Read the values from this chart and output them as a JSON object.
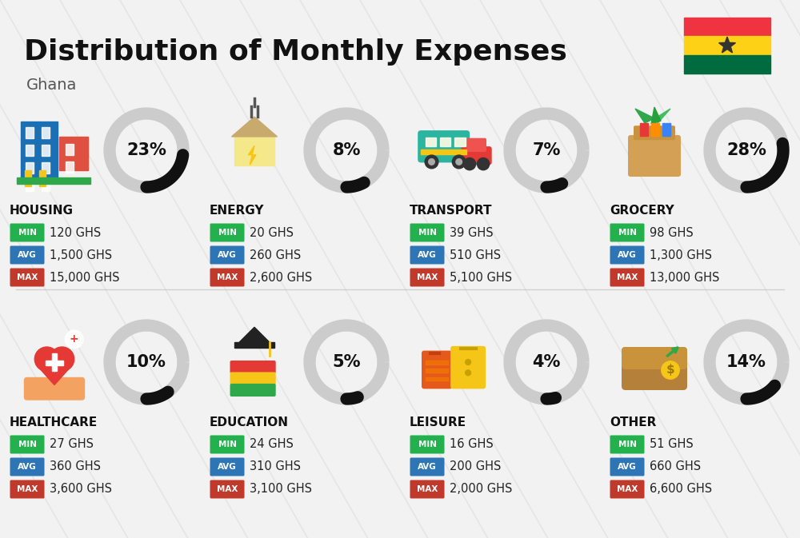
{
  "title": "Distribution of Monthly Expenses",
  "subtitle": "Ghana",
  "background_color": "#f2f2f2",
  "categories": [
    {
      "name": "HOUSING",
      "percent": 23,
      "min": "120 GHS",
      "avg": "1,500 GHS",
      "max": "15,000 GHS",
      "row": 0,
      "col": 0
    },
    {
      "name": "ENERGY",
      "percent": 8,
      "min": "20 GHS",
      "avg": "260 GHS",
      "max": "2,600 GHS",
      "row": 0,
      "col": 1
    },
    {
      "name": "TRANSPORT",
      "percent": 7,
      "min": "39 GHS",
      "avg": "510 GHS",
      "max": "5,100 GHS",
      "row": 0,
      "col": 2
    },
    {
      "name": "GROCERY",
      "percent": 28,
      "min": "98 GHS",
      "avg": "1,300 GHS",
      "max": "13,000 GHS",
      "row": 0,
      "col": 3
    },
    {
      "name": "HEALTHCARE",
      "percent": 10,
      "min": "27 GHS",
      "avg": "360 GHS",
      "max": "3,600 GHS",
      "row": 1,
      "col": 0
    },
    {
      "name": "EDUCATION",
      "percent": 5,
      "min": "24 GHS",
      "avg": "310 GHS",
      "max": "3,100 GHS",
      "row": 1,
      "col": 1
    },
    {
      "name": "LEISURE",
      "percent": 4,
      "min": "16 GHS",
      "avg": "200 GHS",
      "max": "2,000 GHS",
      "row": 1,
      "col": 2
    },
    {
      "name": "OTHER",
      "percent": 14,
      "min": "51 GHS",
      "avg": "660 GHS",
      "max": "6,600 GHS",
      "row": 1,
      "col": 3
    }
  ],
  "min_color": "#22b14c",
  "avg_color": "#2e75b6",
  "max_color": "#c0392b",
  "label_text_color": "#ffffff",
  "ring_active_color": "#111111",
  "ring_inactive_color": "#cccccc",
  "category_name_color": "#111111",
  "ghana_flag_colors": [
    "#ef3340",
    "#fcd116",
    "#006b3f"
  ],
  "title_fontsize": 26,
  "subtitle_fontsize": 14,
  "cat_name_fontsize": 11,
  "value_fontsize": 10.5,
  "pct_fontsize": 15
}
